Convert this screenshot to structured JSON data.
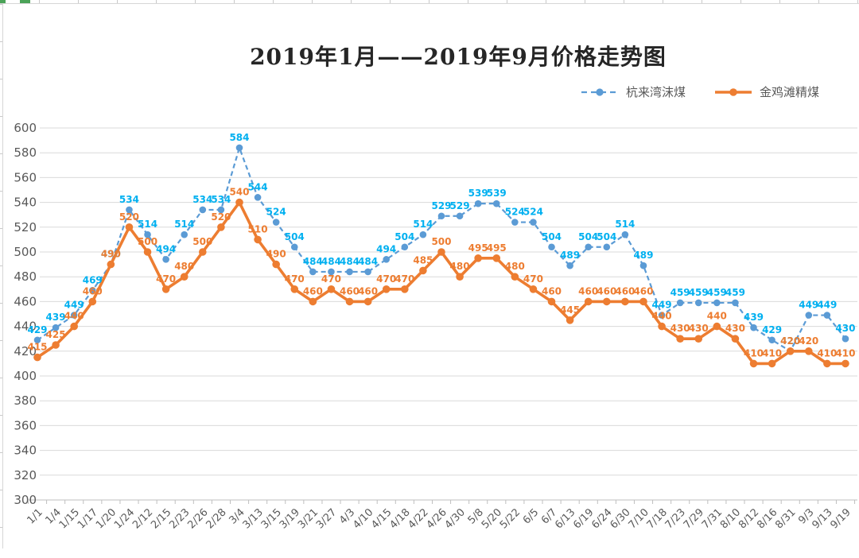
{
  "title": "2019年1月——2019年9月价格走势图",
  "chart_data": {
    "type": "line",
    "title": "2019年1月——2019年9月价格走势图",
    "categories": [
      "1/1",
      "1/4",
      "1/15",
      "1/17",
      "1/20",
      "1/24",
      "2/12",
      "2/15",
      "2/23",
      "2/26",
      "2/28",
      "3/4",
      "3/13",
      "3/15",
      "3/19",
      "3/21",
      "3/27",
      "4/3",
      "4/10",
      "4/15",
      "4/18",
      "4/22",
      "4/26",
      "4/30",
      "5/8",
      "5/20",
      "5/22",
      "6/5",
      "6/7",
      "6/13",
      "6/19",
      "6/24",
      "6/30",
      "7/10",
      "7/18",
      "7/23",
      "7/29",
      "7/31",
      "8/10",
      "8/12",
      "8/16",
      "8/31",
      "9/3",
      "9/13",
      "9/19"
    ],
    "series": [
      {
        "name": "杭来湾沫煤",
        "color": "#5b9bd5",
        "data_label_color": "#00b0f0",
        "line_style": "dashed",
        "marker": "circle",
        "values": [
          429,
          439,
          449,
          469,
          490,
          534,
          514,
          494,
          514,
          534,
          534,
          584,
          544,
          524,
          504,
          484,
          484,
          484,
          484,
          494,
          504,
          514,
          529,
          529,
          539,
          539,
          524,
          524,
          504,
          489,
          504,
          504,
          514,
          489,
          449,
          459,
          459,
          459,
          459,
          439,
          429,
          420,
          449,
          449,
          430
        ]
      },
      {
        "name": "金鸡滩精煤",
        "color": "#ed7d31",
        "data_label_color": "#ed7d31",
        "line_style": "solid",
        "marker": "circle",
        "values": [
          415,
          425,
          440,
          460,
          490,
          520,
          500,
          470,
          480,
          500,
          520,
          540,
          510,
          490,
          470,
          460,
          470,
          460,
          460,
          470,
          470,
          485,
          500,
          480,
          495,
          495,
          480,
          470,
          460,
          445,
          460,
          460,
          460,
          460,
          440,
          430,
          430,
          440,
          430,
          410,
          410,
          420,
          420,
          410,
          410
        ]
      }
    ],
    "y_axis": {
      "min": 300,
      "max": 600,
      "step": 20,
      "ticks": [
        300,
        320,
        340,
        360,
        380,
        400,
        420,
        440,
        460,
        480,
        500,
        520,
        540,
        560,
        580,
        600
      ]
    },
    "x_axis": {
      "label_rotation": -45
    },
    "grid": true,
    "legend_position": "top-right",
    "colors": {
      "gridline": "#d9d9d9",
      "axis_line": "#bfbfbf",
      "axis_text": "#595959",
      "title_text": "#262626",
      "sheet_edge_green": "#4ba358"
    }
  }
}
